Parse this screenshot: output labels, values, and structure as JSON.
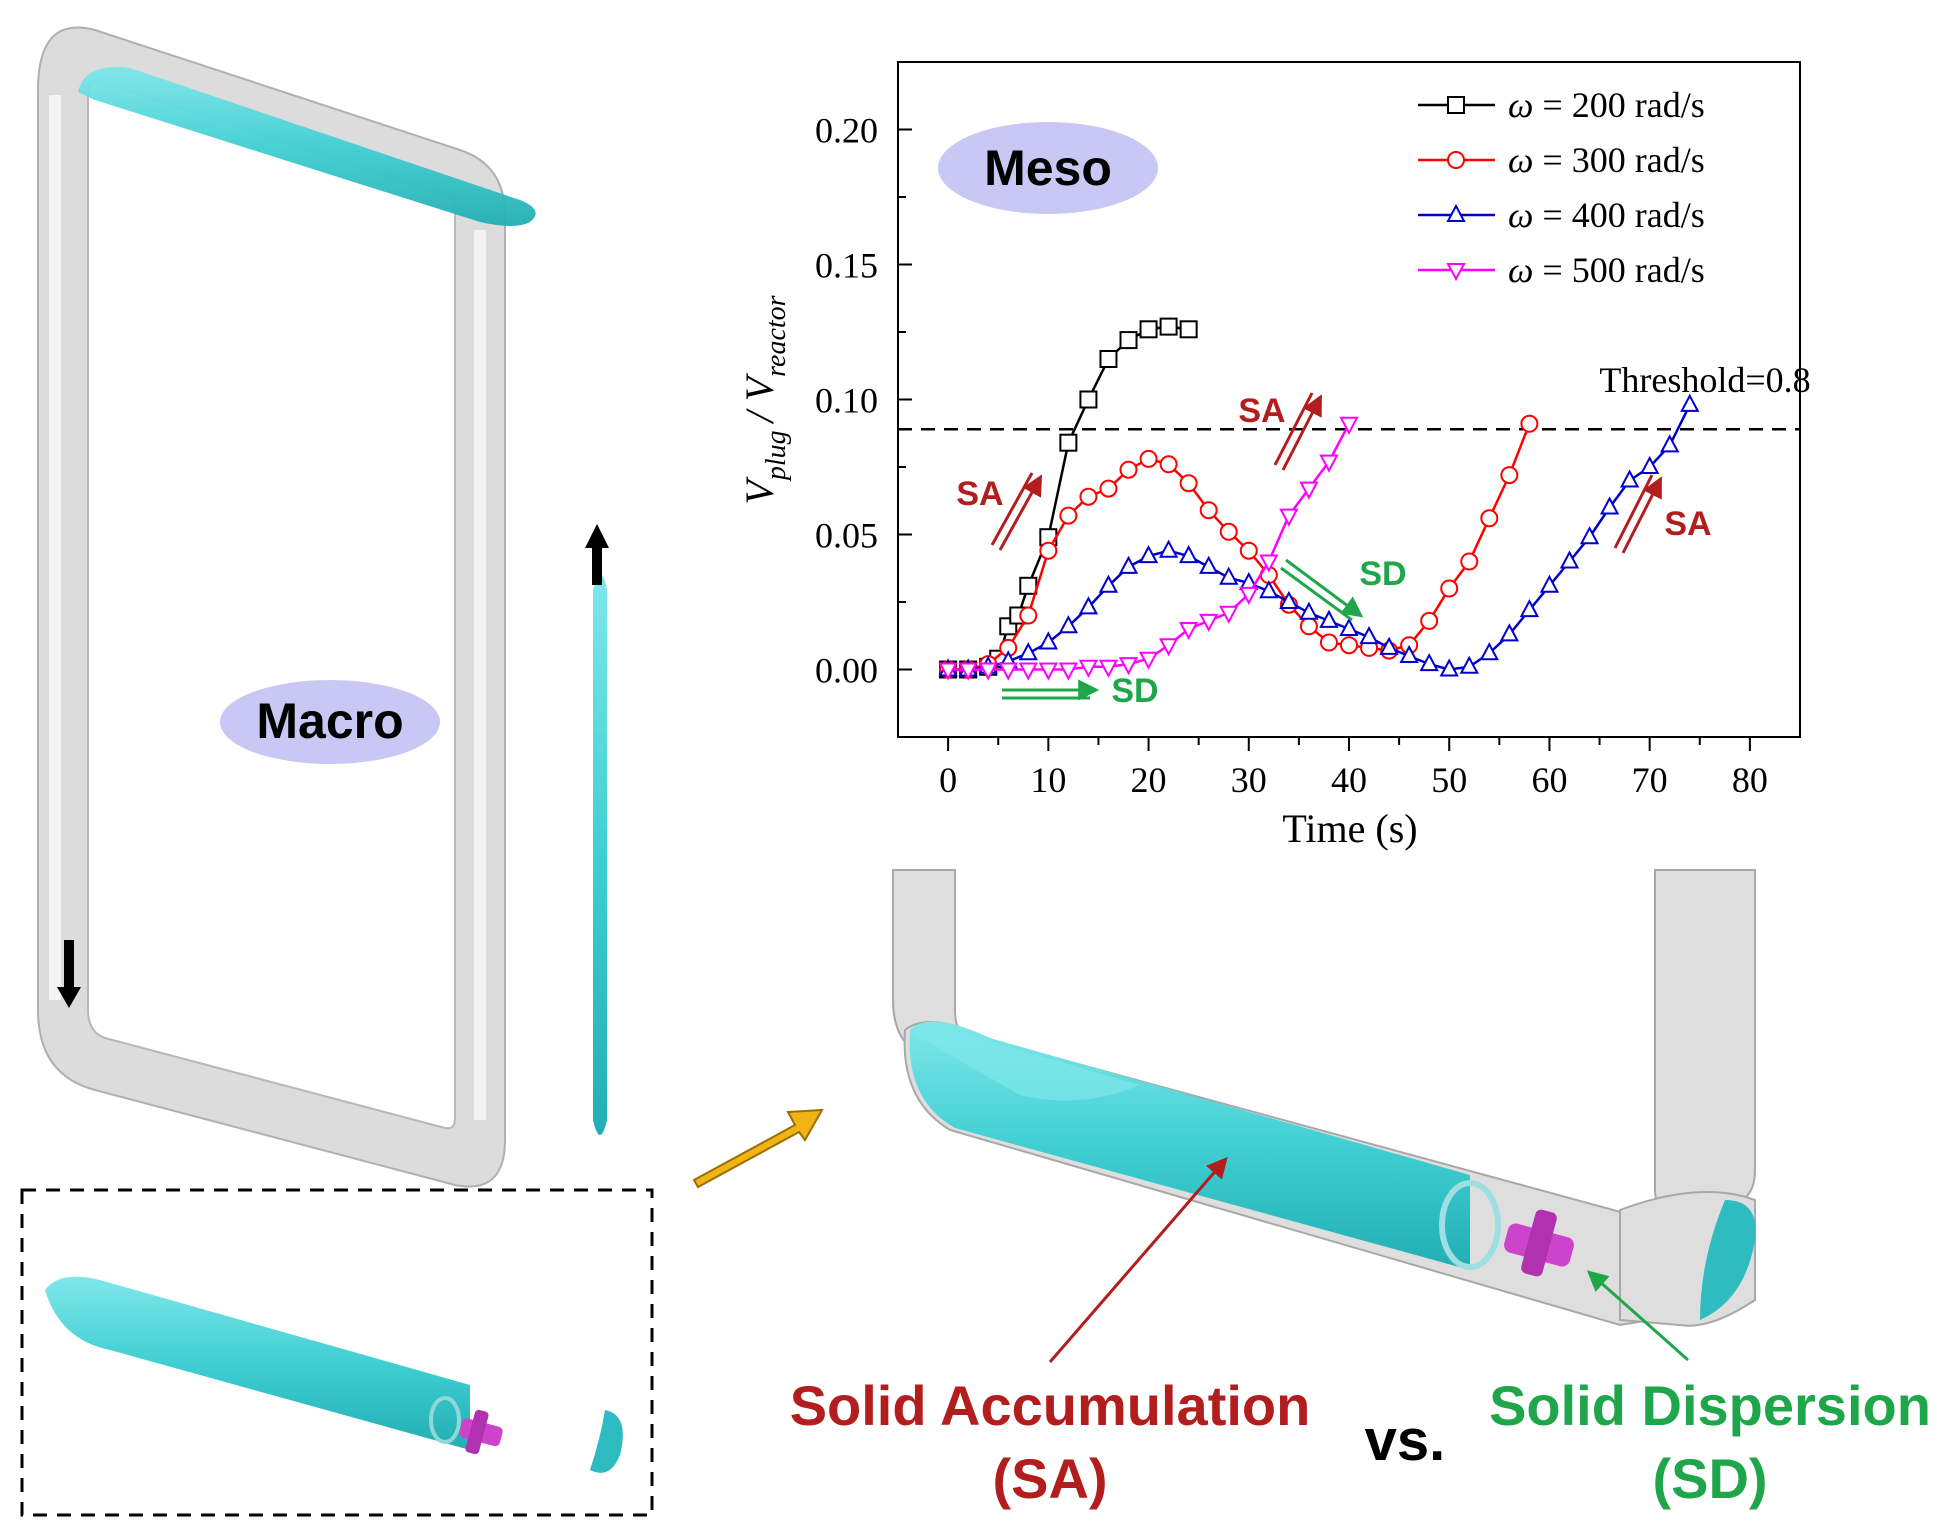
{
  "labels": {
    "macro": "Macro",
    "meso": "Meso",
    "solid_accumulation": "Solid Accumulation",
    "solid_accumulation_abbr": "(SA)",
    "vs": "vs.",
    "solid_dispersion": "Solid Dispersion",
    "solid_dispersion_abbr": "(SD)",
    "sa": "SA",
    "sd": "SD",
    "threshold": "Threshold=0.8"
  },
  "colors": {
    "accumulation": "#b21d1d",
    "dispersion": "#1fa64a",
    "bubble": "#c9c8f4",
    "tube": "#e6e6e6",
    "slurry": "#49d2d6",
    "impeller": "#cc44cc",
    "zoom_arrow": "#f2b315"
  },
  "chart_data": {
    "type": "line",
    "xlabel": "Time (s)",
    "ylabel_main": "V",
    "ylabel_sub1": "plug",
    "ylabel_sep": "/ V",
    "ylabel_sub2": "reactor",
    "xlim": [
      -5,
      85
    ],
    "ylim": [
      -0.025,
      0.225
    ],
    "xticks": [
      "0",
      "10",
      "20",
      "30",
      "40",
      "50",
      "60",
      "70",
      "80"
    ],
    "yticks": [
      "0.00",
      "0.05",
      "0.10",
      "0.15",
      "0.20"
    ],
    "threshold_y": 0.089,
    "grid": false,
    "legend_position": "top-right",
    "series": [
      {
        "name": "ω = 200 rad/s",
        "symbol": "ω",
        "label_rest": " = 200 rad/s",
        "color": "#000000",
        "marker": "square",
        "x": [
          0,
          2,
          4,
          5,
          6,
          7,
          8,
          10,
          12,
          14,
          16,
          18,
          20,
          22,
          24
        ],
        "y": [
          0.0,
          0.0,
          0.001,
          0.004,
          0.016,
          0.02,
          0.031,
          0.049,
          0.084,
          0.1,
          0.115,
          0.122,
          0.126,
          0.127,
          0.126
        ]
      },
      {
        "name": "ω = 300 rad/s",
        "symbol": "ω",
        "label_rest": " = 300 rad/s",
        "color": "#ff0000",
        "marker": "circle",
        "x": [
          0,
          2,
          4,
          6,
          8,
          10,
          12,
          14,
          16,
          18,
          20,
          22,
          24,
          26,
          28,
          30,
          32,
          34,
          36,
          38,
          40,
          42,
          44,
          46,
          48,
          50,
          52,
          54,
          56,
          58
        ],
        "y": [
          0.0,
          0.0,
          0.002,
          0.008,
          0.02,
          0.044,
          0.057,
          0.064,
          0.067,
          0.074,
          0.078,
          0.076,
          0.069,
          0.059,
          0.051,
          0.044,
          0.035,
          0.024,
          0.016,
          0.01,
          0.009,
          0.008,
          0.007,
          0.009,
          0.018,
          0.03,
          0.04,
          0.056,
          0.072,
          0.091
        ]
      },
      {
        "name": "ω = 400 rad/s",
        "symbol": "ω",
        "label_rest": " = 400 rad/s",
        "color": "#0000cc",
        "marker": "triangle-up",
        "x": [
          0,
          2,
          4,
          6,
          8,
          10,
          12,
          14,
          16,
          18,
          20,
          22,
          24,
          26,
          28,
          30,
          32,
          34,
          36,
          38,
          40,
          42,
          44,
          46,
          48,
          50,
          52,
          54,
          56,
          58,
          60,
          62,
          64,
          66,
          68,
          70,
          72,
          74
        ],
        "y": [
          0.0,
          0.0,
          0.001,
          0.003,
          0.006,
          0.01,
          0.016,
          0.023,
          0.031,
          0.038,
          0.042,
          0.044,
          0.042,
          0.038,
          0.034,
          0.032,
          0.029,
          0.025,
          0.021,
          0.018,
          0.015,
          0.012,
          0.008,
          0.005,
          0.002,
          0.0,
          0.001,
          0.006,
          0.013,
          0.022,
          0.031,
          0.04,
          0.049,
          0.06,
          0.07,
          0.075,
          0.083,
          0.098
        ]
      },
      {
        "name": "ω = 500 rad/s",
        "symbol": "ω",
        "label_rest": " = 500 rad/s",
        "color": "#ff00ff",
        "marker": "triangle-down",
        "x": [
          0,
          2,
          4,
          6,
          8,
          10,
          12,
          14,
          16,
          18,
          20,
          22,
          24,
          26,
          28,
          30,
          32,
          34,
          36,
          38,
          40
        ],
        "y": [
          0.0,
          0.0,
          0.0,
          0.0,
          0.0,
          0.0,
          0.0,
          0.001,
          0.001,
          0.002,
          0.004,
          0.009,
          0.015,
          0.018,
          0.021,
          0.028,
          0.04,
          0.057,
          0.067,
          0.077,
          0.091
        ]
      }
    ]
  }
}
